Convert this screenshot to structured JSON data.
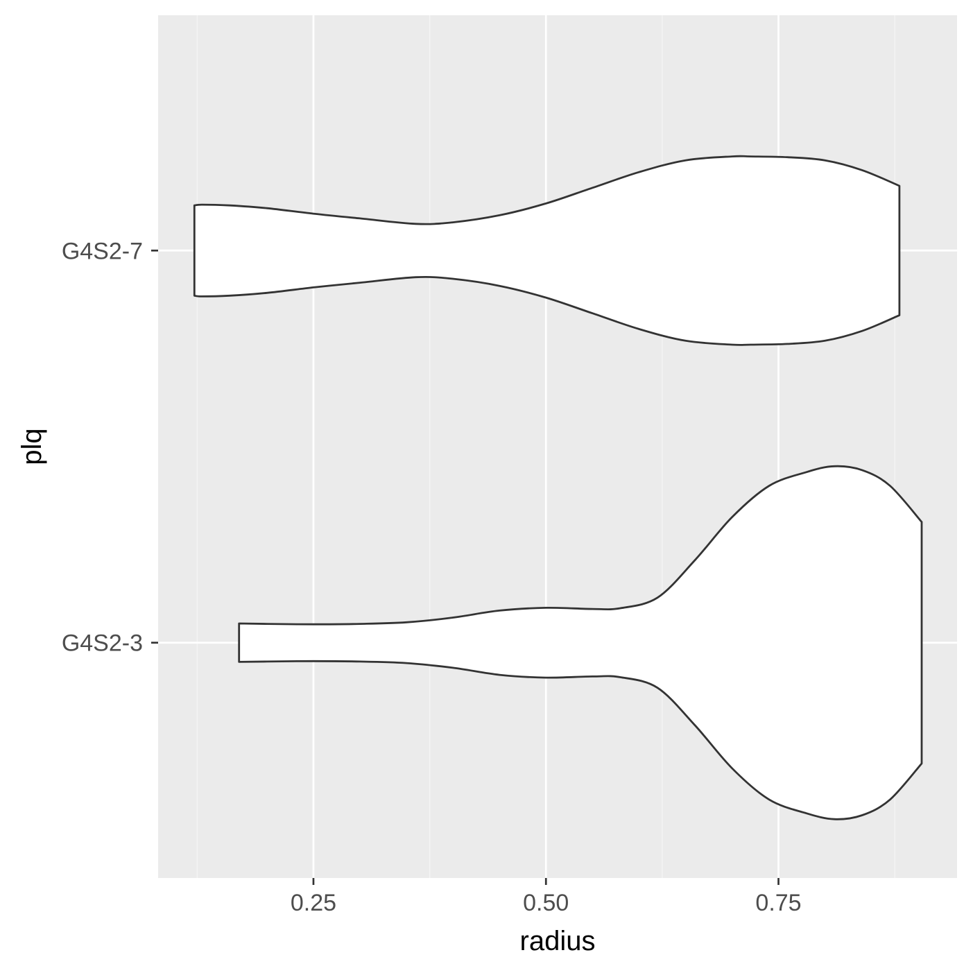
{
  "chart_data": {
    "type": "violin",
    "orientation": "horizontal",
    "xlabel": "radius",
    "ylabel": "plq",
    "xlim": [
      0.083,
      0.942
    ],
    "x_ticks": [
      0.25,
      0.5,
      0.75
    ],
    "x_tick_labels": [
      "0.25",
      "0.50",
      "0.75"
    ],
    "categories": [
      "G4S2-3",
      "G4S2-7"
    ],
    "grid": true,
    "colors": {
      "panel": "#ebebeb",
      "grid_major": "#ffffff",
      "grid_minor": "#f5f5f5",
      "violin_fill": "#ffffff",
      "violin_stroke": "#333333",
      "tick": "#333333"
    },
    "series": [
      {
        "category": "G4S2-7",
        "range": [
          0.122,
          0.88
        ],
        "density_profile": {
          "x": [
            0.122,
            0.13,
            0.16,
            0.2,
            0.25,
            0.3,
            0.36,
            0.4,
            0.45,
            0.5,
            0.55,
            0.6,
            0.65,
            0.7,
            0.72,
            0.76,
            0.8,
            0.84,
            0.88
          ],
          "half_width": [
            0.115,
            0.117,
            0.115,
            0.108,
            0.094,
            0.082,
            0.068,
            0.072,
            0.09,
            0.12,
            0.16,
            0.2,
            0.23,
            0.24,
            0.24,
            0.238,
            0.23,
            0.205,
            0.165
          ]
        }
      },
      {
        "category": "G4S2-3",
        "range": [
          0.17,
          0.904
        ],
        "density_profile": {
          "x": [
            0.17,
            0.2,
            0.25,
            0.3,
            0.35,
            0.4,
            0.45,
            0.5,
            0.55,
            0.58,
            0.62,
            0.66,
            0.7,
            0.74,
            0.78,
            0.81,
            0.84,
            0.87,
            0.904
          ],
          "half_width": [
            0.049,
            0.048,
            0.047,
            0.048,
            0.052,
            0.064,
            0.082,
            0.089,
            0.086,
            0.088,
            0.115,
            0.21,
            0.32,
            0.4,
            0.435,
            0.45,
            0.44,
            0.4,
            0.308
          ]
        }
      }
    ]
  }
}
